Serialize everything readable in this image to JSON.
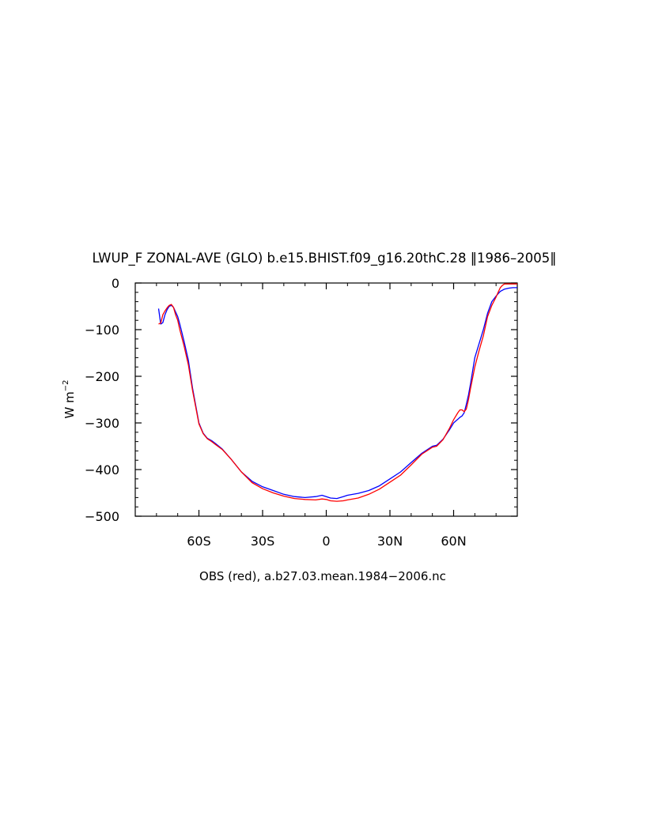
{
  "chart_data": {
    "type": "line",
    "title": "LWUP_F ZONAL-AVE (GLO) b.e15.BHIST.f09_g16.20thC.28 ‖1986–2005‖",
    "ylabel": "W m",
    "ylabel_exponent": "−2",
    "xlabel": "OBS (red), a.b27.03.mean.1984−2006.nc",
    "xlim": [
      -90,
      90
    ],
    "ylim": [
      -500,
      0
    ],
    "grid": false,
    "x_ticks": [
      {
        "value": -60,
        "label": "60S"
      },
      {
        "value": -30,
        "label": "30S"
      },
      {
        "value": 0,
        "label": "0"
      },
      {
        "value": 30,
        "label": "30N"
      },
      {
        "value": 60,
        "label": "60N"
      }
    ],
    "y_ticks": [
      {
        "value": 0,
        "label": "0"
      },
      {
        "value": -100,
        "label": "−100"
      },
      {
        "value": -200,
        "label": "−200"
      },
      {
        "value": -300,
        "label": "−300"
      },
      {
        "value": -400,
        "label": "−400"
      },
      {
        "value": -500,
        "label": "−500"
      }
    ],
    "series": [
      {
        "color": "#0000ff",
        "x": [
          -79,
          -78,
          -77,
          -76,
          -75,
          -74,
          -73,
          -72,
          -71,
          -70,
          -69,
          -67,
          -65,
          -63,
          -61,
          -60,
          -58,
          -56,
          -54,
          -52,
          -49,
          -45,
          -40,
          -35,
          -30,
          -25,
          -20,
          -15,
          -10,
          -5,
          -2,
          0,
          2,
          5,
          8,
          10,
          15,
          20,
          25,
          30,
          35,
          40,
          45,
          50,
          52,
          55,
          58,
          60,
          62,
          63,
          64,
          65,
          66,
          67,
          68,
          70,
          72,
          74,
          76,
          78,
          80,
          82,
          84,
          86,
          88,
          90
        ],
        "values": [
          -55,
          -88,
          -85,
          -68,
          -57,
          -50,
          -48,
          -52,
          -62,
          -72,
          -88,
          -125,
          -165,
          -225,
          -275,
          -300,
          -322,
          -333,
          -338,
          -345,
          -356,
          -377,
          -405,
          -425,
          -437,
          -445,
          -453,
          -458,
          -460,
          -458,
          -455,
          -458,
          -461,
          -462,
          -458,
          -455,
          -451,
          -445,
          -435,
          -420,
          -405,
          -385,
          -365,
          -350,
          -348,
          -335,
          -315,
          -300,
          -292,
          -288,
          -285,
          -278,
          -260,
          -240,
          -215,
          -160,
          -130,
          -100,
          -65,
          -40,
          -28,
          -18,
          -13,
          -11,
          -10,
          -10
        ]
      },
      {
        "color": "#ff0000",
        "x": [
          -79,
          -78,
          -77,
          -76,
          -75,
          -74,
          -73,
          -72,
          -71,
          -70,
          -69,
          -67,
          -65,
          -63,
          -61,
          -60,
          -58,
          -56,
          -54,
          -52,
          -49,
          -45,
          -40,
          -35,
          -30,
          -25,
          -20,
          -15,
          -10,
          -5,
          -2,
          0,
          2,
          5,
          8,
          10,
          15,
          20,
          25,
          30,
          35,
          40,
          45,
          50,
          52,
          55,
          58,
          60,
          62,
          63,
          64,
          65,
          66,
          67,
          68,
          70,
          72,
          74,
          76,
          78,
          80,
          81,
          82,
          83,
          84,
          86,
          88,
          90
        ],
        "values": [
          -88,
          -86,
          -68,
          -60,
          -53,
          -48,
          -46,
          -52,
          -68,
          -80,
          -100,
          -135,
          -175,
          -230,
          -278,
          -302,
          -323,
          -334,
          -340,
          -347,
          -357,
          -377,
          -405,
          -428,
          -441,
          -450,
          -457,
          -462,
          -464,
          -465,
          -463,
          -464,
          -467,
          -468,
          -467,
          -465,
          -461,
          -453,
          -442,
          -427,
          -412,
          -390,
          -367,
          -352,
          -350,
          -336,
          -312,
          -293,
          -278,
          -272,
          -272,
          -276,
          -270,
          -250,
          -225,
          -180,
          -145,
          -113,
          -72,
          -48,
          -30,
          -20,
          -10,
          -5,
          -2,
          -2,
          -2,
          -2
        ]
      }
    ]
  }
}
